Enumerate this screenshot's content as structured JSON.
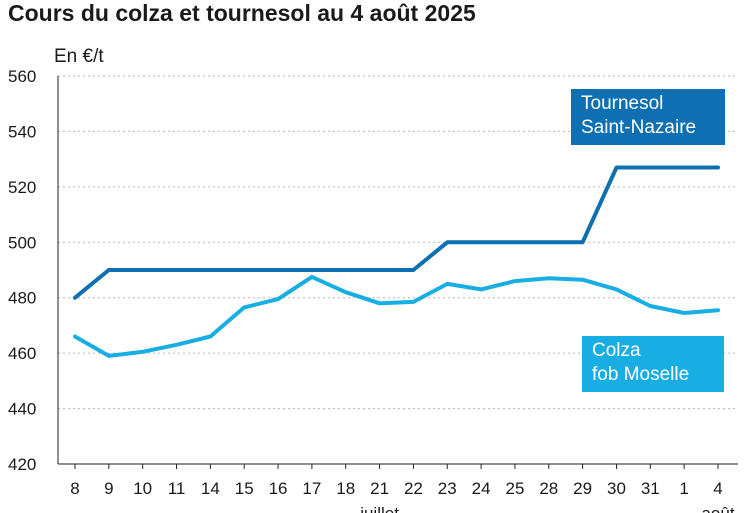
{
  "title": "Cours du colza et tournesol au 4 août 2025",
  "unit_label": "En €/t",
  "colors": {
    "tournesol": "#0f6fb3",
    "colza": "#18aee4",
    "grid": "#b5b5b5",
    "axis": "#222222"
  },
  "chart_data": {
    "type": "line",
    "title": "Cours du colza et tournesol au 4 août 2025",
    "ylabel": "En €/t",
    "xlabel": "",
    "ylim": [
      420,
      560
    ],
    "yticks": [
      420,
      440,
      460,
      480,
      500,
      520,
      540,
      560
    ],
    "categories": [
      "8",
      "9",
      "10",
      "11",
      "14",
      "15",
      "16",
      "17",
      "18",
      "21",
      "22",
      "23",
      "24",
      "25",
      "28",
      "29",
      "30",
      "31",
      "1",
      "4"
    ],
    "month_labels": [
      {
        "index": 9,
        "label": "juillet"
      },
      {
        "index": 19,
        "label": "août"
      }
    ],
    "grid": true,
    "series": [
      {
        "name": "Tournesol Saint-Nazaire",
        "color": "#0f6fb3",
        "values": [
          480,
          490,
          490,
          490,
          490,
          490,
          490,
          490,
          490,
          490,
          490,
          500,
          500,
          500,
          500,
          500,
          527,
          527,
          527,
          527
        ]
      },
      {
        "name": "Colza fob Moselle",
        "color": "#18aee4",
        "values": [
          466,
          459,
          460.5,
          463,
          466,
          476.5,
          479.5,
          487.5,
          482,
          478,
          478.5,
          485,
          483,
          486,
          487,
          486.5,
          483,
          477,
          474.5,
          475.5
        ]
      }
    ],
    "legend": [
      {
        "series": 0,
        "lines": [
          "Tournesol",
          "Saint-Nazaire"
        ]
      },
      {
        "series": 1,
        "lines": [
          "Colza",
          "fob Moselle"
        ]
      }
    ]
  }
}
